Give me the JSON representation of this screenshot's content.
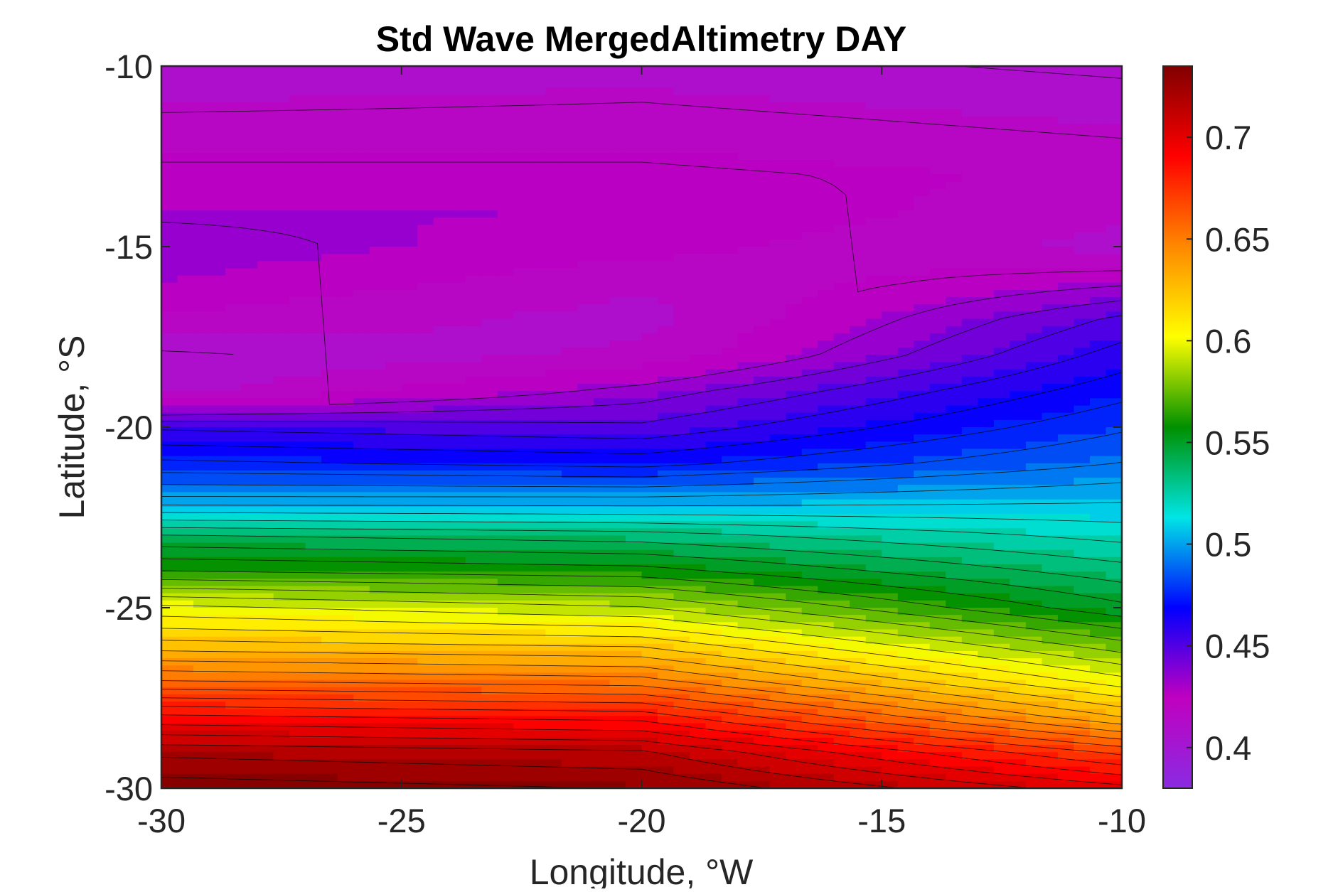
{
  "chart_data": {
    "type": "heatmap",
    "subtype": "filled-contour",
    "title": "Std Wave MergedAltimetry DAY",
    "xlabel": "Longitude, °W",
    "ylabel": "Latitude, °S",
    "xlim": [
      -30,
      -10
    ],
    "ylim": [
      -30,
      -10
    ],
    "xticks": [
      -30,
      -25,
      -20,
      -15,
      -10
    ],
    "yticks": [
      -10,
      -15,
      -20,
      -25,
      -30
    ],
    "colorbar": {
      "clim": [
        0.38,
        0.735
      ],
      "ticks": [
        0.4,
        0.45,
        0.5,
        0.55,
        0.6,
        0.65,
        0.7
      ],
      "tick_labels": [
        "0.4",
        "0.45",
        "0.5",
        "0.55",
        "0.6",
        "0.65",
        "0.7"
      ],
      "colormap": "purple-magenta-blue-cyan-green-yellow-orange-red-darkred",
      "colors": [
        "#8a2be2",
        "#c000c0",
        "#0000ff",
        "#00e5e5",
        "#009000",
        "#ffff00",
        "#ff8800",
        "#ff0000",
        "#800000"
      ]
    },
    "contour_step": 0.0083,
    "grid": false,
    "profiles": {
      "latitudes": [
        -10,
        -11,
        -12,
        -13,
        -14,
        -15,
        -16,
        -17,
        -18,
        -19,
        -20,
        -21,
        -22,
        -23,
        -24,
        -25,
        -26,
        -27,
        -28,
        -29,
        -30
      ],
      "lon_-30": [
        0.41,
        0.413,
        0.42,
        0.425,
        0.43,
        0.435,
        0.43,
        0.42,
        0.405,
        0.41,
        0.455,
        0.475,
        0.5,
        0.54,
        0.565,
        0.6,
        0.625,
        0.655,
        0.69,
        0.72,
        0.735
      ],
      "lon_-20": [
        0.41,
        0.415,
        0.42,
        0.425,
        0.43,
        0.425,
        0.415,
        0.41,
        0.415,
        0.435,
        0.45,
        0.47,
        0.5,
        0.535,
        0.56,
        0.59,
        0.62,
        0.65,
        0.685,
        0.715,
        0.73
      ],
      "lon_-10": [
        0.405,
        0.41,
        0.415,
        0.42,
        0.415,
        0.41,
        0.43,
        0.45,
        0.46,
        0.47,
        0.48,
        0.49,
        0.505,
        0.52,
        0.535,
        0.55,
        0.575,
        0.6,
        0.63,
        0.67,
        0.7
      ]
    }
  }
}
